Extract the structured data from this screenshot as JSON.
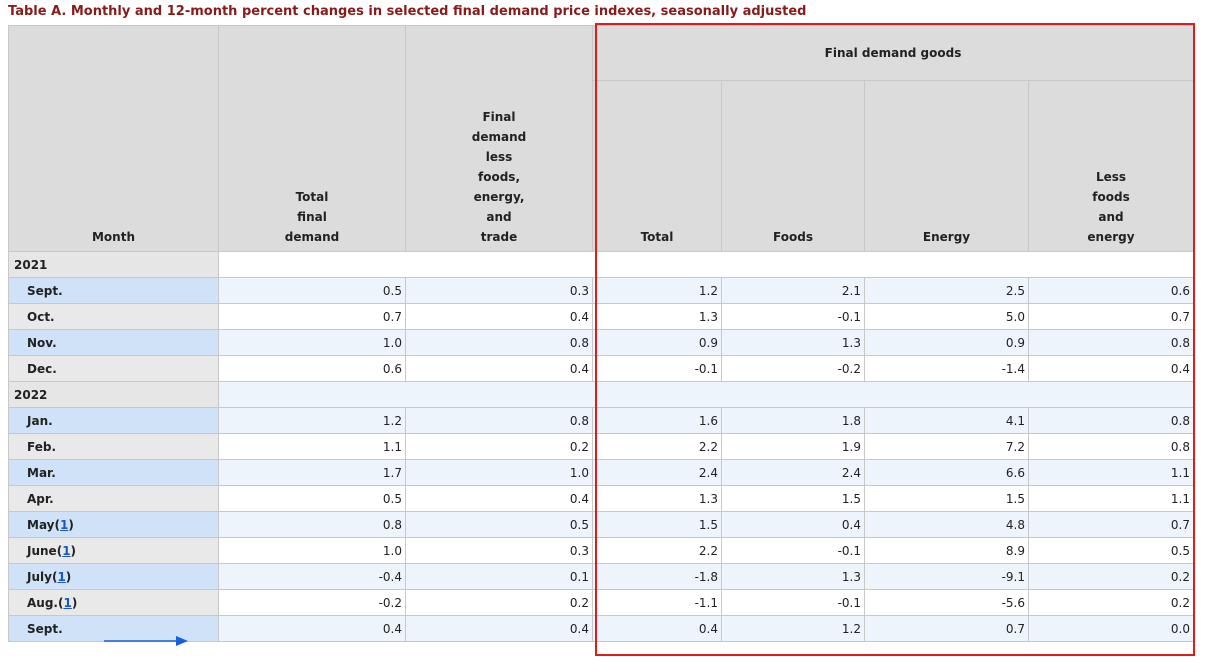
{
  "title": "Table A. Monthly and 12-month percent changes in selected final demand price indexes, seasonally adjusted",
  "headers": {
    "month": "Month",
    "total_final_demand": [
      "Total",
      "final",
      "demand"
    ],
    "fd_less": [
      "Final",
      "demand",
      "less",
      "foods,",
      "energy,",
      "and",
      "trade"
    ],
    "group": "Final demand goods",
    "goods_total": "Total",
    "goods_foods": "Foods",
    "goods_energy": "Energy",
    "goods_less": [
      "Less",
      "foods",
      "and",
      "energy"
    ]
  },
  "footnote_marker": "1",
  "years": [
    "2021",
    "2022"
  ],
  "rows": [
    {
      "month": "Sept.",
      "fn": false,
      "values": [
        "0.5",
        "0.3",
        "1.2",
        "2.1",
        "2.5",
        "0.6"
      ]
    },
    {
      "month": "Oct.",
      "fn": false,
      "values": [
        "0.7",
        "0.4",
        "1.3",
        "-0.1",
        "5.0",
        "0.7"
      ]
    },
    {
      "month": "Nov.",
      "fn": false,
      "values": [
        "1.0",
        "0.8",
        "0.9",
        "1.3",
        "0.9",
        "0.8"
      ]
    },
    {
      "month": "Dec.",
      "fn": false,
      "values": [
        "0.6",
        "0.4",
        "-0.1",
        "-0.2",
        "-1.4",
        "0.4"
      ]
    },
    {
      "month": "Jan.",
      "fn": false,
      "values": [
        "1.2",
        "0.8",
        "1.6",
        "1.8",
        "4.1",
        "0.8"
      ]
    },
    {
      "month": "Feb.",
      "fn": false,
      "values": [
        "1.1",
        "0.2",
        "2.2",
        "1.9",
        "7.2",
        "0.8"
      ]
    },
    {
      "month": "Mar.",
      "fn": false,
      "values": [
        "1.7",
        "1.0",
        "2.4",
        "2.4",
        "6.6",
        "1.1"
      ]
    },
    {
      "month": "Apr.",
      "fn": false,
      "values": [
        "0.5",
        "0.4",
        "1.3",
        "1.5",
        "1.5",
        "1.1"
      ]
    },
    {
      "month": "May",
      "fn": true,
      "values": [
        "0.8",
        "0.5",
        "1.5",
        "0.4",
        "4.8",
        "0.7"
      ]
    },
    {
      "month": "June",
      "fn": true,
      "values": [
        "1.0",
        "0.3",
        "2.2",
        "-0.1",
        "8.9",
        "0.5"
      ]
    },
    {
      "month": "July",
      "fn": true,
      "values": [
        "-0.4",
        "0.1",
        "-1.8",
        "1.3",
        "-9.1",
        "0.2"
      ]
    },
    {
      "month": "Aug.",
      "fn": true,
      "values": [
        "-0.2",
        "0.2",
        "-1.1",
        "-0.1",
        "-5.6",
        "0.2"
      ]
    },
    {
      "month": "Sept.",
      "fn": false,
      "values": [
        "0.4",
        "0.4",
        "0.4",
        "1.2",
        "0.7",
        "0.0"
      ]
    }
  ],
  "colors": {
    "title": "#8a1b1b",
    "header_bg": "#dcdcdc",
    "row_alt_bg": "#eef4fb",
    "month_alt_bg": "#cfe2f7",
    "highlight_box": "#e01b1b",
    "arrow": "#1a5ee0",
    "link": "#1a56c4"
  }
}
